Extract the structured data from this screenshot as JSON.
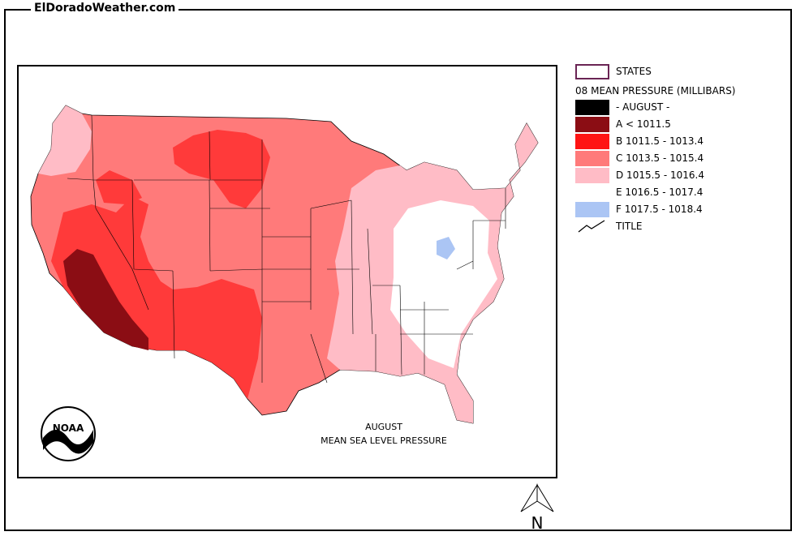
{
  "site": {
    "title": "ElDoradoWeather.com"
  },
  "map": {
    "caption_line1": "AUGUST",
    "caption_line2": "MEAN SEA LEVEL PRESSURE",
    "logo_text": "NOAA"
  },
  "legend": {
    "states_label": "STATES",
    "title": "08 MEAN PRESSURE (MILLIBARS)",
    "items": [
      {
        "label": "- AUGUST -",
        "color": "#000000"
      },
      {
        "label": "A < 1011.5",
        "color": "#8b0d14"
      },
      {
        "label": "B 1011.5 - 1013.4",
        "color": "#ff1414"
      },
      {
        "label": "C 1013.5 - 1015.4",
        "color": "#ff7a7a"
      },
      {
        "label": "D 1015.5 - 1016.4",
        "color": "#ffbcc6"
      },
      {
        "label": "E 1016.5 - 1017.4",
        "color": "#ffffff"
      },
      {
        "label": "F 1017.5 - 1018.4",
        "color": "#abc5f4"
      }
    ],
    "title_line_label": "TITLE"
  },
  "north_arrow": {
    "label": "N"
  }
}
